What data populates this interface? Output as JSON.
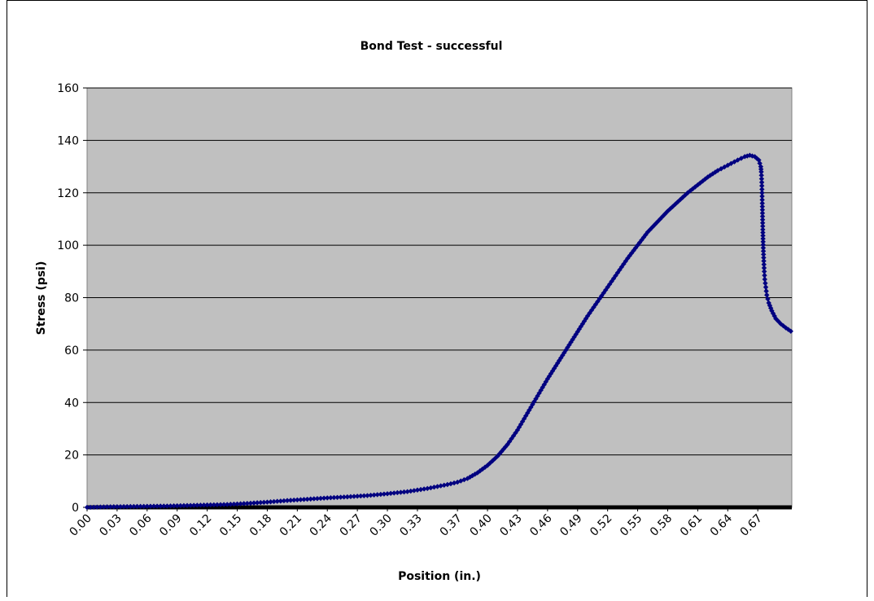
{
  "chart_data": {
    "type": "scatter",
    "title": "Bond Test  - successful",
    "xlabel": "Position (in.)",
    "ylabel": "Stress (psi)",
    "ylim": [
      0,
      160
    ],
    "y_ticks": [
      "0",
      "20",
      "40",
      "60",
      "80",
      "100",
      "120",
      "140",
      "160"
    ],
    "x_ticks": [
      "0.00",
      "0.03",
      "0.06",
      "0.09",
      "0.12",
      "0.15",
      "0.18",
      "0.21",
      "0.24",
      "0.27",
      "0.30",
      "0.33",
      "0.37",
      "0.40",
      "0.43",
      "0.46",
      "0.49",
      "0.52",
      "0.55",
      "0.58",
      "0.61",
      "0.64",
      "0.67"
    ],
    "grid": true,
    "plot_background": "#c0c0c0",
    "series_color": "#000080",
    "series": [
      {
        "points": [
          [
            0.0,
            0.0
          ],
          [
            0.02,
            0.2
          ],
          [
            0.04,
            0.3
          ],
          [
            0.06,
            0.4
          ],
          [
            0.08,
            0.5
          ],
          [
            0.1,
            0.7
          ],
          [
            0.12,
            0.9
          ],
          [
            0.14,
            1.1
          ],
          [
            0.16,
            1.5
          ],
          [
            0.18,
            2.0
          ],
          [
            0.2,
            2.6
          ],
          [
            0.22,
            3.1
          ],
          [
            0.24,
            3.6
          ],
          [
            0.26,
            4.0
          ],
          [
            0.28,
            4.5
          ],
          [
            0.3,
            5.2
          ],
          [
            0.32,
            6.0
          ],
          [
            0.34,
            7.2
          ],
          [
            0.36,
            8.7
          ],
          [
            0.37,
            9.6
          ],
          [
            0.38,
            11.0
          ],
          [
            0.39,
            13.2
          ],
          [
            0.4,
            16.0
          ],
          [
            0.41,
            19.5
          ],
          [
            0.42,
            24.0
          ],
          [
            0.43,
            29.5
          ],
          [
            0.44,
            36.0
          ],
          [
            0.45,
            42.5
          ],
          [
            0.46,
            49.0
          ],
          [
            0.47,
            55.0
          ],
          [
            0.48,
            61.0
          ],
          [
            0.49,
            67.0
          ],
          [
            0.5,
            73.0
          ],
          [
            0.51,
            78.5
          ],
          [
            0.52,
            84.0
          ],
          [
            0.53,
            89.5
          ],
          [
            0.54,
            95.0
          ],
          [
            0.55,
            100.0
          ],
          [
            0.56,
            105.0
          ],
          [
            0.57,
            109.0
          ],
          [
            0.58,
            113.0
          ],
          [
            0.59,
            116.5
          ],
          [
            0.6,
            120.0
          ],
          [
            0.61,
            123.0
          ],
          [
            0.62,
            126.0
          ],
          [
            0.63,
            128.5
          ],
          [
            0.64,
            130.5
          ],
          [
            0.65,
            132.5
          ],
          [
            0.657,
            133.8
          ],
          [
            0.662,
            134.3
          ],
          [
            0.667,
            133.8
          ],
          [
            0.671,
            132.5
          ],
          [
            0.673,
            130.0
          ],
          [
            0.6735,
            128.0
          ],
          [
            0.674,
            124.0
          ],
          [
            0.6745,
            116.0
          ],
          [
            0.675,
            106.0
          ],
          [
            0.6755,
            99.0
          ],
          [
            0.676,
            94.0
          ],
          [
            0.6765,
            90.0
          ],
          [
            0.677,
            87.0
          ],
          [
            0.678,
            84.0
          ],
          [
            0.679,
            81.0
          ],
          [
            0.681,
            78.0
          ],
          [
            0.684,
            75.0
          ],
          [
            0.688,
            72.0
          ],
          [
            0.693,
            70.0
          ],
          [
            0.698,
            68.5
          ],
          [
            0.703,
            67.2
          ]
        ]
      }
    ]
  }
}
